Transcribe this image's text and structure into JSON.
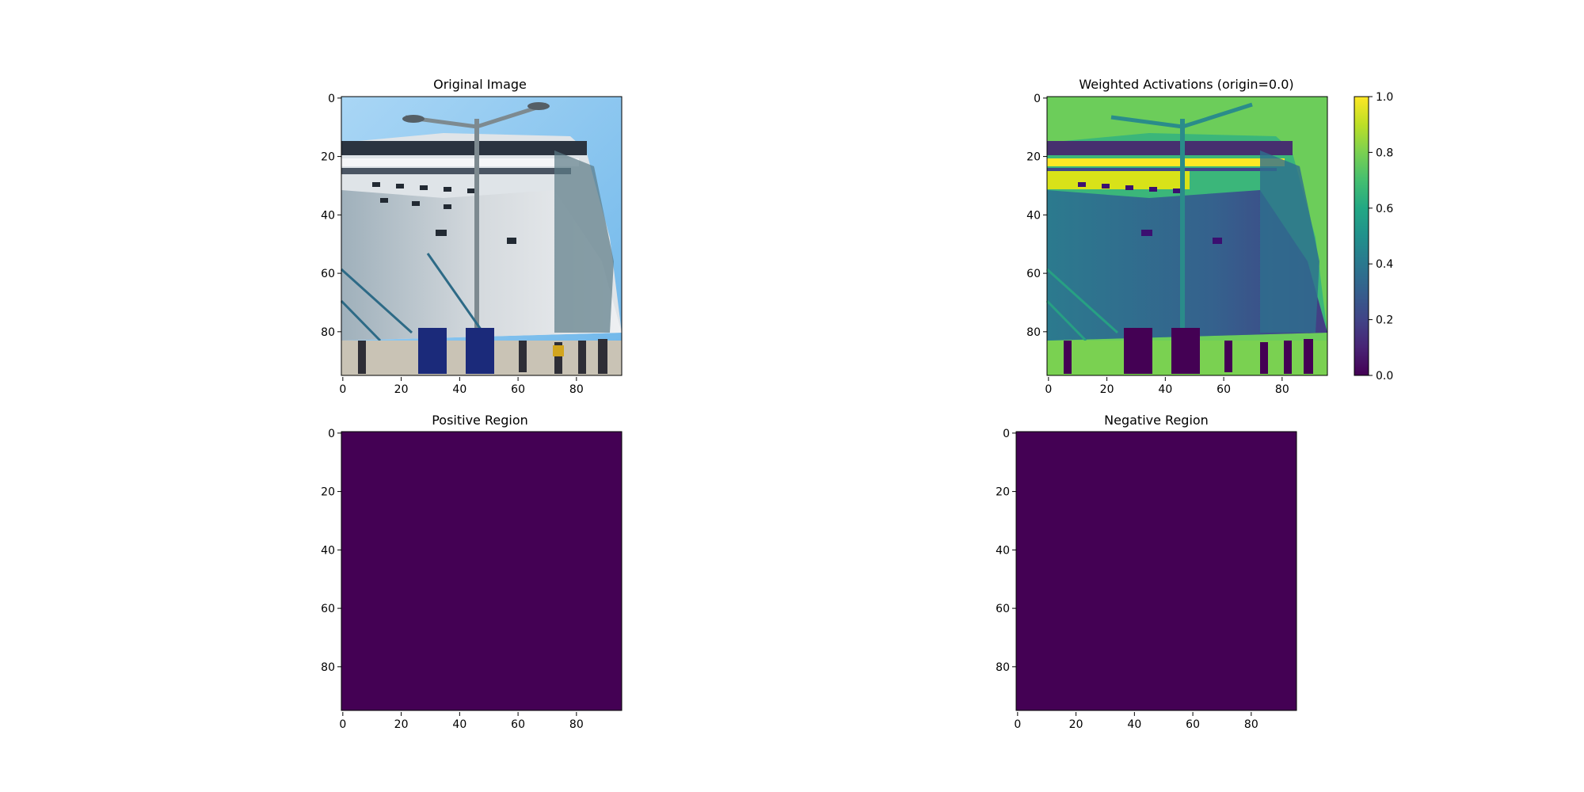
{
  "colors": {
    "background": "#ffffff",
    "axis": "#000000",
    "viridis_low": "#440154",
    "sky": "#8ec9ef",
    "hull": "#c7d0d6",
    "deck_white": "#eef1f4"
  },
  "chart_data": [
    {
      "type": "heatmap",
      "title": "Original Image",
      "image_kind": "rgb",
      "image_content": "photo of a cruise ship docked at a pier with a street lamp and people on the dock",
      "xlim": [
        -0.5,
        95.5
      ],
      "ylim": [
        95.5,
        -0.5
      ],
      "x_ticks": [
        "0",
        "20",
        "40",
        "60",
        "80"
      ],
      "y_ticks": [
        "0",
        "20",
        "40",
        "60",
        "80"
      ],
      "colorbar": false
    },
    {
      "type": "heatmap",
      "title": "Weighted Activations (origin=0.0)",
      "image_kind": "viridis",
      "image_content": "viridis-mapped activation map of the cruise ship photo",
      "xlim": [
        -0.5,
        95.5
      ],
      "ylim": [
        95.5,
        -0.5
      ],
      "x_ticks": [
        "0",
        "20",
        "40",
        "60",
        "80"
      ],
      "y_ticks": [
        "0",
        "20",
        "40",
        "60",
        "80"
      ],
      "colorbar": true,
      "colorbar_range": [
        0.0,
        1.0
      ],
      "colorbar_ticks": [
        "0.0",
        "0.2",
        "0.4",
        "0.6",
        "0.8",
        "1.0"
      ],
      "colormap": "viridis"
    },
    {
      "type": "heatmap",
      "title": "Positive Region",
      "image_kind": "uniform",
      "uniform_value": 0,
      "xlim": [
        -0.5,
        95.5
      ],
      "ylim": [
        95.5,
        -0.5
      ],
      "x_ticks": [
        "0",
        "20",
        "40",
        "60",
        "80"
      ],
      "y_ticks": [
        "0",
        "20",
        "40",
        "60",
        "80"
      ],
      "colorbar": false
    },
    {
      "type": "heatmap",
      "title": "Negative Region",
      "image_kind": "uniform",
      "uniform_value": 0,
      "xlim": [
        -0.5,
        95.5
      ],
      "ylim": [
        95.5,
        -0.5
      ],
      "x_ticks": [
        "0",
        "20",
        "40",
        "60",
        "80"
      ],
      "y_ticks": [
        "0",
        "20",
        "40",
        "60",
        "80"
      ],
      "colorbar": false
    }
  ]
}
